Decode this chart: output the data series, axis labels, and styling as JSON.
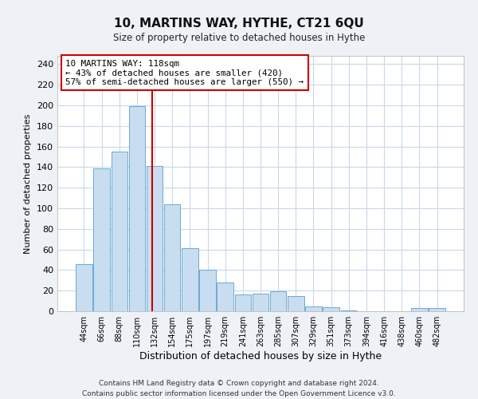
{
  "title": "10, MARTINS WAY, HYTHE, CT21 6QU",
  "subtitle": "Size of property relative to detached houses in Hythe",
  "xlabel": "Distribution of detached houses by size in Hythe",
  "ylabel": "Number of detached properties",
  "bar_labels": [
    "44sqm",
    "66sqm",
    "88sqm",
    "110sqm",
    "132sqm",
    "154sqm",
    "175sqm",
    "197sqm",
    "219sqm",
    "241sqm",
    "263sqm",
    "285sqm",
    "307sqm",
    "329sqm",
    "351sqm",
    "373sqm",
    "394sqm",
    "416sqm",
    "438sqm",
    "460sqm",
    "482sqm"
  ],
  "bar_values": [
    46,
    139,
    155,
    199,
    141,
    104,
    61,
    40,
    28,
    16,
    17,
    19,
    15,
    5,
    4,
    1,
    0,
    0,
    0,
    3,
    3
  ],
  "bar_color": "#c9ddf0",
  "bar_edge_color": "#6aaad4",
  "annotation_line_color": "#cc0000",
  "annotation_box_text": "10 MARTINS WAY: 118sqm\n← 43% of detached houses are smaller (420)\n57% of semi-detached houses are larger (550) →",
  "ylim": [
    0,
    248
  ],
  "yticks": [
    0,
    20,
    40,
    60,
    80,
    100,
    120,
    140,
    160,
    180,
    200,
    220,
    240
  ],
  "footer1": "Contains HM Land Registry data © Crown copyright and database right 2024.",
  "footer2": "Contains public sector information licensed under the Open Government Licence v3.0.",
  "bg_color": "#eef2f7",
  "plot_bg_color": "#ffffff",
  "grid_color": "#c8d8ea"
}
